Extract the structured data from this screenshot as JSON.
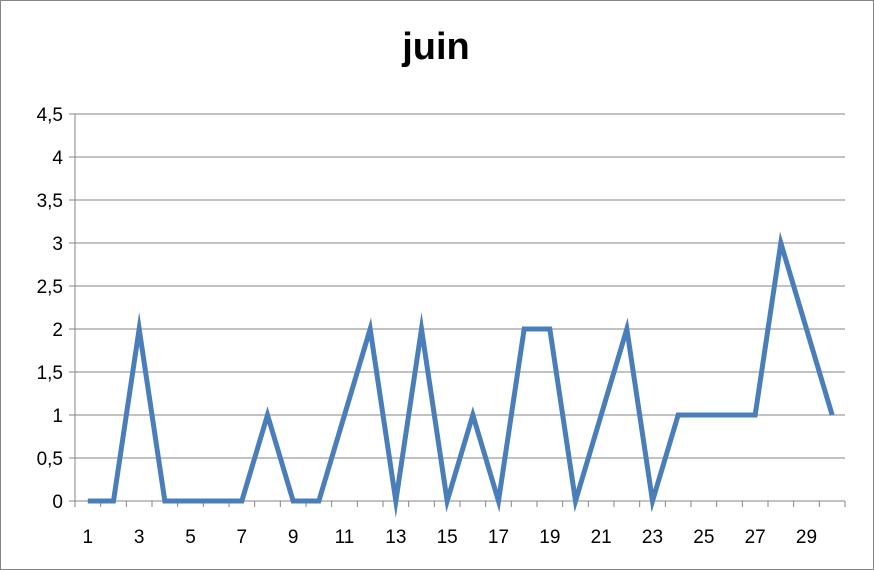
{
  "chart_data": {
    "type": "line",
    "title": "juin",
    "xlabel": "",
    "ylabel": "",
    "x": [
      1,
      2,
      3,
      4,
      5,
      6,
      7,
      8,
      9,
      10,
      11,
      12,
      13,
      14,
      15,
      16,
      17,
      18,
      19,
      20,
      21,
      22,
      23,
      24,
      25,
      26,
      27,
      28,
      29,
      30
    ],
    "x_tick_labels": [
      "1",
      "3",
      "5",
      "7",
      "9",
      "11",
      "13",
      "15",
      "17",
      "19",
      "21",
      "23",
      "25",
      "27",
      "29"
    ],
    "y_tick_labels": [
      "0",
      "0,5",
      "1",
      "1,5",
      "2",
      "2,5",
      "3",
      "3,5",
      "4",
      "4,5"
    ],
    "ylim": [
      0,
      4.5
    ],
    "grid": true,
    "legend": "none",
    "series": [
      {
        "values": [
          0,
          0,
          2,
          0,
          0,
          0,
          0,
          1,
          0,
          0,
          1,
          2,
          0,
          2,
          0,
          1,
          0,
          2,
          2,
          0,
          1,
          2,
          0,
          1,
          1,
          1,
          1,
          3,
          2,
          1
        ]
      }
    ],
    "colors": {
      "line": "#4a7ebb",
      "grid": "#868686",
      "axis": "#868686"
    }
  }
}
